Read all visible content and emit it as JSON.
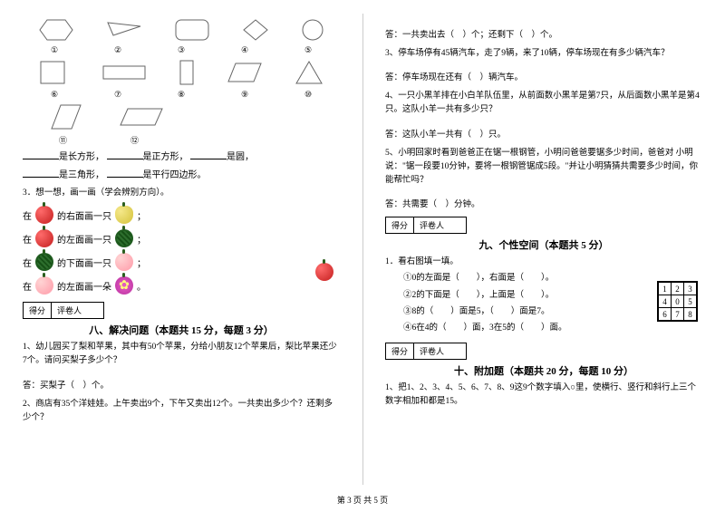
{
  "footer": "第 3 页 共 5 页",
  "left": {
    "shapeLabels": [
      "①",
      "②",
      "③",
      "④",
      "⑤",
      "⑥",
      "⑦",
      "⑧",
      "⑨",
      "⑩",
      "⑪",
      "⑫"
    ],
    "fillBlanks": {
      "line1_a": "是长方形，",
      "line1_b": "是正方形，",
      "line1_c": "是圆，",
      "line2_a": "是三角形，",
      "line2_b": "是平行四边形。"
    },
    "q3title": "3．想一想，画一画（学会辨别方向）。",
    "drawRows": [
      {
        "prefix": "在",
        "mid": "的右面画一只",
        "f1": "apple",
        "f2": "pear",
        "suffix": "；"
      },
      {
        "prefix": "在",
        "mid": "的左面画一只",
        "f1": "apple",
        "f2": "watermelon",
        "suffix": "；"
      },
      {
        "prefix": "在",
        "mid": "的下面画一只",
        "f1": "watermelon",
        "f2": "peach",
        "suffix": "；"
      },
      {
        "prefix": "在",
        "mid": "的左面画一朵",
        "f1": "peach",
        "f2": "flower",
        "suffix": "。"
      }
    ],
    "scoreLabels": {
      "score": "得分",
      "marker": "评卷人"
    },
    "section8": "八、解决问题（本题共 15 分，每题 3 分）",
    "q1": "1、幼儿园买了梨和苹果，其中有50个苹果，分给小朋友12个苹果后，梨比苹果还少7个。请问买梨子多少个？",
    "a1": "答：买梨子（　）个。",
    "q2": "2、商店有35个洋娃娃。上午卖出9个，下午又卖出12个。一共卖出多少个？还剩多少个？"
  },
  "right": {
    "a2": "答：一共卖出去（　）个；还剩下（　）个。",
    "q3": "3、停车场停有45辆汽车，走了9辆，来了10辆，停车场现在有多少辆汽车？",
    "a3": "答：停车场现在还有（　）辆汽车。",
    "q4": "4、一只小黑羊排在小白羊队伍里，从前面数小黑羊是第7只，从后面数小黑羊是第4只。这队小羊一共有多少只？",
    "a4": "答：这队小羊一共有（　）只。",
    "q5": "5、小明回家时看到爸爸正在锯一根钢管，小明问爸爸要锯多少时间，爸爸对 小明说：\"锯一段要10分钟，要将一根钢管锯成5段。\"并让小明猜猜共需要多少时间，你能帮忙吗？",
    "a5": "答：共需要（　）分钟。",
    "scoreLabels": {
      "score": "得分",
      "marker": "评卷人"
    },
    "section9": "九、个性空间（本题共 5 分）",
    "q9_1": "1．看右图填一填。",
    "q9_1a": "①0的左面是（　　），右面是（　　）。",
    "q9_1b": "②2的下面是（　　），上面是（　　）。",
    "q9_1c": "③8的（　　）面是5，（　　）面是7。",
    "q9_1d": "④6在4的（　　）面，3在5的（　　）面。",
    "gridCells": [
      [
        "1",
        "2",
        "3"
      ],
      [
        "4",
        "0",
        "5"
      ],
      [
        "6",
        "7",
        "8"
      ]
    ],
    "section10": "十、附加题（本题共 20 分，每题 10 分）",
    "q10_1": "1、把1、2、3、4、5、6、7、8、9这9个数字填入○里，使横行、竖行和斜行上三个数字相加和都是15。"
  },
  "colors": {
    "text": "#000000",
    "bg": "#ffffff",
    "shapeStroke": "#666666"
  }
}
